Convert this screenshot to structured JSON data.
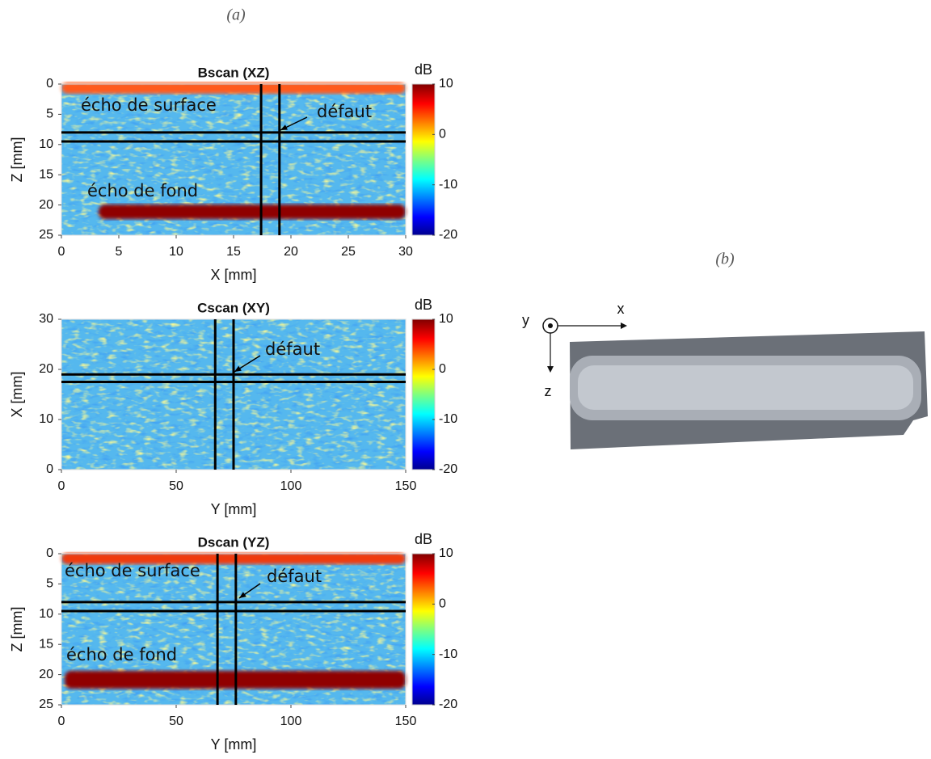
{
  "panel_labels": [
    "(a)",
    "(b)"
  ],
  "chart_data": [
    {
      "type": "heatmap",
      "title": "Bscan (XZ)",
      "x_label": "X [mm]",
      "y_label": "Z [mm]",
      "xlim": [
        0,
        30
      ],
      "ylim": [
        25,
        0
      ],
      "xticks": [
        0,
        5,
        10,
        15,
        20,
        25,
        30
      ],
      "yticks": [
        0,
        5,
        10,
        15,
        20,
        25
      ],
      "colorbar": {
        "label": "dB",
        "lim": [
          -20,
          10
        ],
        "ticks": [
          10,
          0,
          -10,
          -20
        ]
      },
      "cursor_x": [
        17.4,
        19
      ],
      "cursor_y": [
        8,
        9.5
      ],
      "annotations": [
        "écho de surface",
        "défaut",
        "écho de fond"
      ]
    },
    {
      "type": "heatmap",
      "title": "Cscan (XY)",
      "x_label": "Y [mm]",
      "y_label": "X [mm]",
      "xlim": [
        0,
        150
      ],
      "ylim": [
        0,
        30
      ],
      "xticks": [
        0,
        50,
        100,
        150
      ],
      "yticks": [
        0,
        10,
        20,
        30
      ],
      "colorbar": {
        "label": "dB",
        "lim": [
          -20,
          10
        ],
        "ticks": [
          10,
          0,
          -10,
          -20
        ]
      },
      "cursor_x": [
        67,
        75
      ],
      "cursor_y": [
        17.5,
        19
      ],
      "annotations": [
        "défaut"
      ]
    },
    {
      "type": "heatmap",
      "title": "Dscan (YZ)",
      "x_label": "Y [mm]",
      "y_label": "Z [mm]",
      "xlim": [
        0,
        150
      ],
      "ylim": [
        25,
        0
      ],
      "xticks": [
        0,
        50,
        100,
        150
      ],
      "yticks": [
        0,
        5,
        10,
        15,
        20,
        25
      ],
      "colorbar": {
        "label": "dB",
        "lim": [
          -20,
          10
        ],
        "ticks": [
          10,
          0,
          -10,
          -20
        ]
      },
      "cursor_x": [
        68,
        76
      ],
      "cursor_y": [
        8,
        9.5
      ],
      "annotations": [
        "écho de surface",
        "défaut",
        "écho de fond"
      ]
    }
  ],
  "photo": {
    "axes": [
      "y",
      "x",
      "z"
    ]
  }
}
